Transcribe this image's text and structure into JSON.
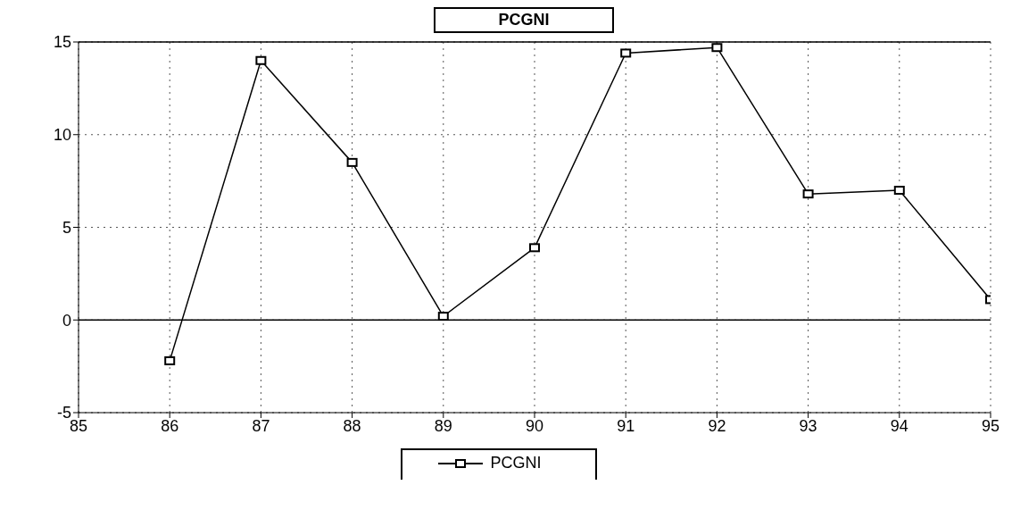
{
  "chart_data": {
    "type": "line",
    "title": "PCGNI",
    "x": [
      86,
      87,
      88,
      89,
      90,
      91,
      92,
      93,
      94,
      95
    ],
    "series": [
      {
        "name": "PCGNI",
        "color": "#000000",
        "values": [
          -2.2,
          14.0,
          8.5,
          0.2,
          3.9,
          14.4,
          14.7,
          6.8,
          7.0,
          1.1
        ]
      }
    ],
    "xlim": [
      85,
      95
    ],
    "xticks": [
      85,
      86,
      87,
      88,
      89,
      90,
      91,
      92,
      93,
      94,
      95
    ],
    "ylim": [
      -5,
      15
    ],
    "yticks": [
      -5,
      0,
      5,
      10,
      15
    ],
    "ref_lines": [
      {
        "axis": "y",
        "value": 0,
        "color": "#000000",
        "line_style": "solid"
      }
    ],
    "grid": true,
    "legend": "bottom",
    "marker": "square",
    "line_style": "solid"
  }
}
